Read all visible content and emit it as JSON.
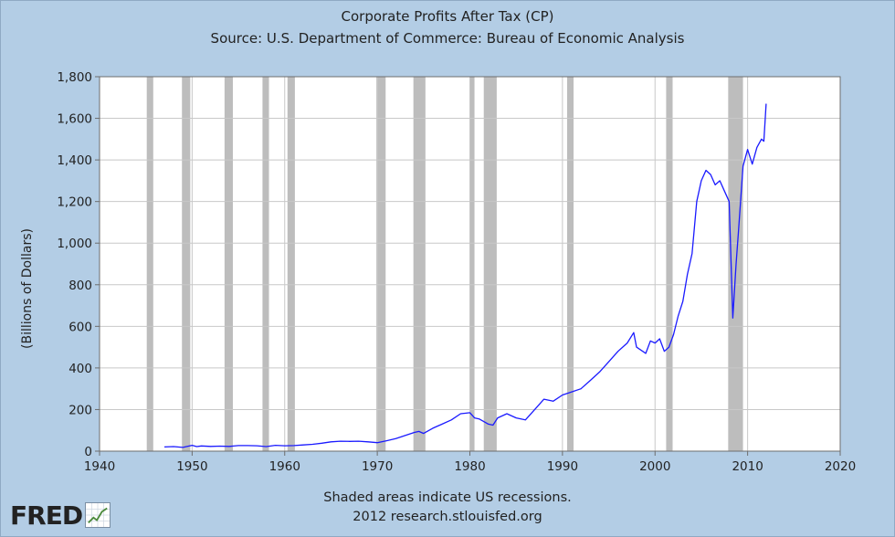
{
  "chart_data": {
    "type": "line",
    "title": "Corporate Profits After Tax (CP)",
    "subtitle": "Source: U.S. Department of Commerce: Bureau of Economic Analysis",
    "xlabel": "",
    "ylabel": "(Billions of Dollars)",
    "xlim": [
      1940,
      2020
    ],
    "ylim": [
      0,
      1800
    ],
    "x_ticks": [
      "1940",
      "1950",
      "1960",
      "1970",
      "1980",
      "1990",
      "2000",
      "2010",
      "2020"
    ],
    "y_ticks": [
      "0",
      "200",
      "400",
      "600",
      "800",
      "1,000",
      "1,200",
      "1,400",
      "1,600",
      "1,800"
    ],
    "grid": true,
    "line_color": "#1a1aff",
    "recession_color": "#bdbdbd",
    "recessions": [
      [
        1945.1,
        1945.8
      ],
      [
        1948.9,
        1949.8
      ],
      [
        1953.5,
        1954.4
      ],
      [
        1957.6,
        1958.3
      ],
      [
        1960.3,
        1961.1
      ],
      [
        1969.9,
        1970.9
      ],
      [
        1973.9,
        1975.2
      ],
      [
        1980.0,
        1980.5
      ],
      [
        1981.5,
        1982.9
      ],
      [
        1990.5,
        1991.2
      ],
      [
        2001.2,
        2001.9
      ],
      [
        2007.9,
        2009.5
      ]
    ],
    "series": [
      {
        "x": [
          1947,
          1948,
          1949,
          1950,
          1950.5,
          1951,
          1952,
          1953,
          1954,
          1955,
          1956,
          1957,
          1958,
          1959,
          1960,
          1961,
          1962,
          1963,
          1964,
          1965,
          1966,
          1967,
          1968,
          1969,
          1970,
          1971,
          1972,
          1973,
          1974,
          1974.5,
          1975,
          1976,
          1977,
          1978,
          1979,
          1980,
          1980.5,
          1981,
          1982,
          1982.5,
          1983,
          1984,
          1985,
          1986,
          1987,
          1988,
          1989,
          1990,
          1991,
          1992,
          1993,
          1994,
          1995,
          1996,
          1997,
          1997.7,
          1998,
          1999,
          1999.5,
          2000,
          2000.5,
          2001,
          2001.5,
          2002,
          2002.5,
          2003,
          2003.5,
          2004,
          2004.5,
          2005,
          2005.5,
          2006,
          2006.5,
          2007,
          2007.5,
          2008,
          2008.4,
          2008.75,
          2009,
          2009.5,
          2010,
          2010.5,
          2011,
          2011.5,
          2011.75,
          2012
        ],
        "values": [
          20,
          22,
          18,
          28,
          22,
          25,
          23,
          24,
          23,
          27,
          27,
          26,
          22,
          28,
          26,
          27,
          30,
          33,
          38,
          45,
          48,
          47,
          48,
          45,
          41,
          50,
          60,
          75,
          90,
          95,
          85,
          110,
          130,
          150,
          180,
          185,
          160,
          155,
          130,
          125,
          160,
          180,
          160,
          150,
          200,
          250,
          240,
          270,
          285,
          300,
          340,
          380,
          430,
          480,
          520,
          570,
          500,
          470,
          530,
          520,
          540,
          480,
          500,
          560,
          650,
          720,
          850,
          950,
          1200,
          1300,
          1350,
          1330,
          1280,
          1300,
          1250,
          1200,
          640,
          900,
          1050,
          1370,
          1450,
          1380,
          1460,
          1500,
          1490,
          1670
        ]
      }
    ]
  },
  "footer": {
    "note": "Shaded areas indicate US recessions.",
    "source": "2012 research.stlouisfed.org"
  },
  "logo": {
    "text": "FRED"
  }
}
